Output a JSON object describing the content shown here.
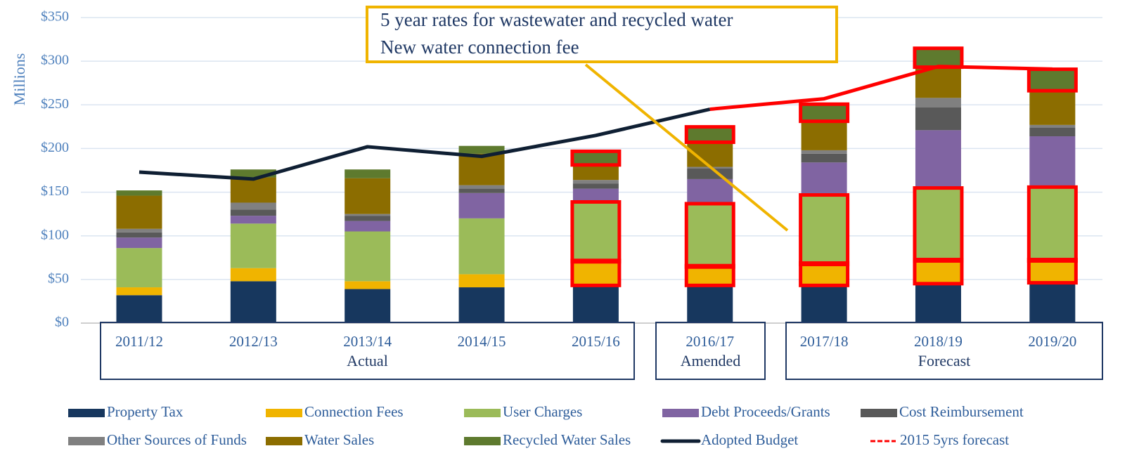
{
  "chart_data": {
    "type": "bar",
    "stacked": true,
    "y_axis_label": "Millions",
    "categories": [
      "2011/12",
      "2012/13",
      "2013/14",
      "2014/15",
      "2015/16",
      "2016/17",
      "2017/18",
      "2018/19",
      "2019/20"
    ],
    "groups": [
      "Actual",
      "Amended",
      "Forecast"
    ],
    "annotation": [
      "5 year rates for wastewater and recycled water",
      "New water connection fee"
    ],
    "ylim": [
      0,
      350
    ],
    "yticks": [
      {
        "value": 0,
        "label": "$0"
      },
      {
        "value": 50,
        "label": "$50"
      },
      {
        "value": 100,
        "label": "$100"
      },
      {
        "value": 150,
        "label": "$150"
      },
      {
        "value": 200,
        "label": "$200"
      },
      {
        "value": 250,
        "label": "$250"
      },
      {
        "value": 300,
        "label": "$300"
      },
      {
        "value": 350,
        "label": "$350"
      }
    ],
    "grid": true,
    "series": [
      {
        "name": "Property Tax",
        "color": "#17375e",
        "values": [
          32,
          48,
          39,
          41,
          44,
          44,
          44,
          46,
          47
        ]
      },
      {
        "name": "Connection Fees",
        "color": "#f0b400",
        "values": [
          9,
          15,
          9,
          15,
          27,
          21,
          24,
          26,
          25
        ]
      },
      {
        "name": "User Charges",
        "color": "#9bbb59",
        "values": [
          45,
          51,
          57,
          64,
          67,
          71,
          78,
          82,
          83
        ]
      },
      {
        "name": "Debt Proceeds/Grants",
        "color": "#8064a2",
        "values": [
          12,
          9,
          12,
          29,
          16,
          29,
          38,
          67,
          59
        ]
      },
      {
        "name": "Cost Reimbursement",
        "color": "#595959",
        "values": [
          6,
          7,
          6,
          5,
          6,
          12,
          10,
          26,
          10
        ]
      },
      {
        "name": "Other Sources of Funds",
        "color": "#808080",
        "values": [
          4,
          8,
          2,
          4,
          4,
          2,
          4,
          11,
          3
        ]
      },
      {
        "name": "Water Sales",
        "color": "#8c6d00",
        "values": [
          38,
          29,
          41,
          36,
          18,
          29,
          34,
          36,
          40
        ]
      },
      {
        "name": "Recycled Water Sales",
        "color": "#5e7a2e",
        "values": [
          6,
          9,
          10,
          9,
          14,
          16,
          18,
          20,
          23
        ]
      },
      {
        "name": "Adopted Budget",
        "color": "#0f1f33",
        "kind": "line",
        "values": [
          173,
          165,
          202,
          191,
          215,
          245,
          null,
          null,
          null
        ]
      },
      {
        "name": "2015 5yrs forecast",
        "color": "#ff0000",
        "kind": "line",
        "dashed": true,
        "values": [
          null,
          null,
          null,
          null,
          null,
          245,
          257,
          294,
          291
        ]
      }
    ]
  }
}
